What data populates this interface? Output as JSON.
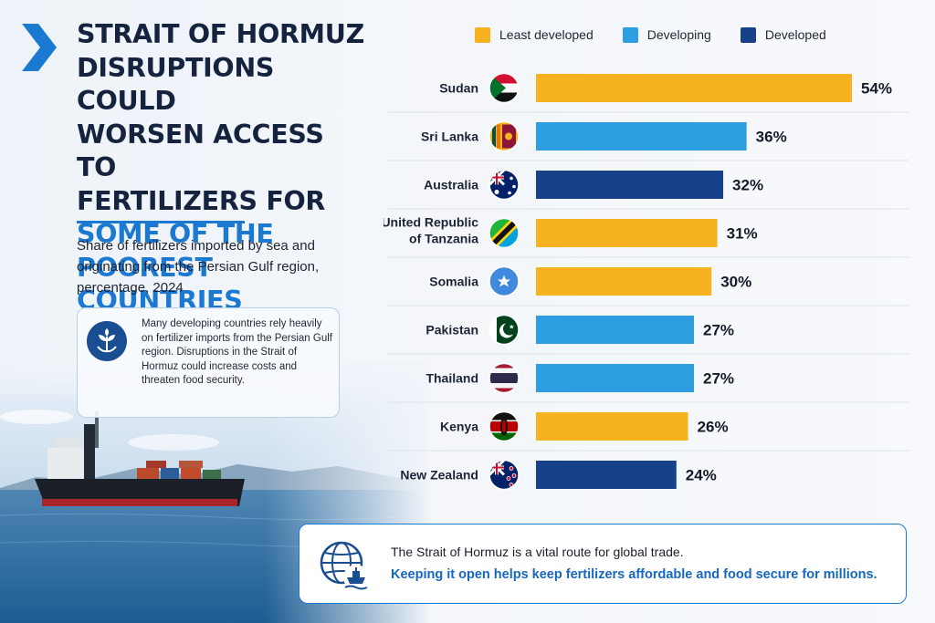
{
  "header": {
    "title_lines_dark": [
      "STRAIT OF HORMUZ",
      "DISRUPTIONS COULD",
      "WORSEN ACCESS TO",
      "FERTILIZERS FOR"
    ],
    "title_lines_accent": [
      "SOME OF THE",
      "POOREST COUNTRIES"
    ],
    "subtitle": "Share of fertilizers imported by sea and originating from the Persian Gulf region, percentage, 2024"
  },
  "info_box": {
    "icon": "plant-sprout-icon",
    "text": "Many developing countries rely heavily on fertilizer imports from the Persian Gulf region. Disruptions in the Strait of Hormuz could increase costs and threaten food security."
  },
  "legend": [
    {
      "label": "Least developed",
      "color": "#f7b21f"
    },
    {
      "label": "Developing",
      "color": "#2d9fe0"
    },
    {
      "label": "Developed",
      "color": "#17428a"
    }
  ],
  "chart_data": {
    "type": "bar",
    "orientation": "horizontal",
    "categories": [
      "Sudan",
      "Sri Lanka",
      "Australia",
      "United Republic of Tanzania",
      "Somalia",
      "Pakistan",
      "Thailand",
      "Kenya",
      "New Zealand"
    ],
    "values": [
      54,
      36,
      32,
      31,
      30,
      27,
      27,
      26,
      24
    ],
    "value_labels": [
      "54%",
      "36%",
      "32%",
      "31%",
      "30%",
      "27%",
      "27%",
      "26%",
      "24%"
    ],
    "groups": [
      "Least developed",
      "Developing",
      "Developed",
      "Least developed",
      "Least developed",
      "Developing",
      "Developing",
      "Least developed",
      "Developed"
    ],
    "flags": [
      "sudan-flag-icon",
      "sri-lanka-flag-icon",
      "australia-flag-icon",
      "tanzania-flag-icon",
      "somalia-flag-icon",
      "pakistan-flag-icon",
      "thailand-flag-icon",
      "kenya-flag-icon",
      "new-zealand-flag-icon"
    ],
    "group_colors": {
      "Least developed": "#f7b21f",
      "Developing": "#2d9fe0",
      "Developed": "#17428a"
    },
    "xlim": [
      0,
      54
    ],
    "legend_position": "top",
    "grid": false
  },
  "callout": {
    "icon": "globe-ship-icon",
    "line1": "The Strait of Hormuz is a vital route for global trade.",
    "line2": "Keeping it open helps keep fertilizers affordable and food secure for millions."
  }
}
